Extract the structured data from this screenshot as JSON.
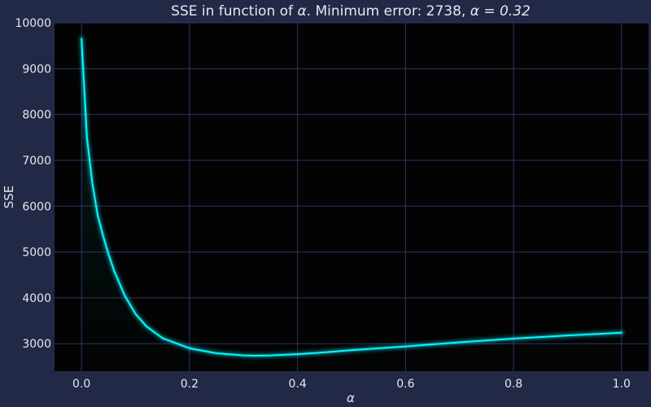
{
  "chart_data": {
    "type": "line",
    "title_prefix": "SSE in function of ",
    "title_greek": "α",
    "title_mid": ". Minimum error: 2738, ",
    "title_eq": "α = 0.32",
    "xlabel": "α",
    "ylabel": "SSE",
    "xlim": [
      -0.05,
      1.05
    ],
    "ylim": [
      2400,
      10000
    ],
    "x_ticks": [
      0.0,
      0.2,
      0.4,
      0.6,
      0.8,
      1.0
    ],
    "x_tick_labels": [
      "0.0",
      "0.2",
      "0.4",
      "0.6",
      "0.8",
      "1.0"
    ],
    "y_ticks": [
      3000,
      4000,
      5000,
      6000,
      7000,
      8000,
      9000,
      10000
    ],
    "y_tick_labels": [
      "3000",
      "4000",
      "5000",
      "6000",
      "7000",
      "8000",
      "9000",
      "10000"
    ],
    "grid": true,
    "colors": {
      "figure_bg": "#212946",
      "plot_bg": "#030303",
      "grid": "#2f3566",
      "line": "#08F7FE",
      "text": "#e6e8ee"
    },
    "series": [
      {
        "x": [
          0.0,
          0.01,
          0.02,
          0.03,
          0.04,
          0.05,
          0.06,
          0.08,
          0.1,
          0.12,
          0.15,
          0.2,
          0.25,
          0.3,
          0.32,
          0.35,
          0.4,
          0.45,
          0.5,
          0.6,
          0.7,
          0.8,
          0.9,
          1.0
        ],
        "y": [
          9650,
          7500,
          6500,
          5800,
          5350,
          4950,
          4600,
          4050,
          3650,
          3380,
          3120,
          2900,
          2790,
          2745,
          2738,
          2745,
          2770,
          2810,
          2860,
          2940,
          3030,
          3110,
          3180,
          3240
        ]
      }
    ]
  }
}
